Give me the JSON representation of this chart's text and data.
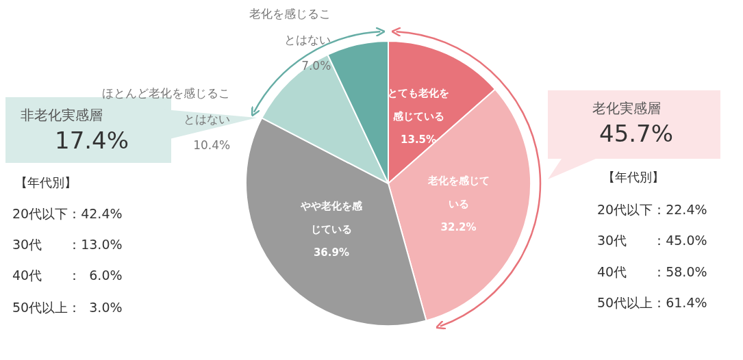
{
  "chart_data": {
    "type": "pie",
    "categories": [
      "とても老化を感じている",
      "老化を感じている",
      "やや老化を感じている",
      "ほとんど老化を感じることはない",
      "老化を感じることはない"
    ],
    "values": [
      13.5,
      32.2,
      36.9,
      10.4,
      7.0
    ],
    "value_labels": [
      "13.5%",
      "32.2%",
      "36.9%",
      "10.4%",
      "7.0%"
    ],
    "colors": [
      "#e8737a",
      "#f4b3b5",
      "#9b9b9b",
      "#b3d9d2",
      "#66ada5"
    ],
    "annotations": [
      "非老化実感層",
      "17.4%",
      "【年代別】",
      "20代以下：42.4%",
      "30代　　：13.0%",
      "40代　　：  6.0%",
      "50代以上：  3.0%",
      "老化実感層",
      "45.7%",
      "【年代別】",
      "20代以下：22.4%",
      "30代　　：45.0%",
      "40代　　：58.0%",
      "50代以上：61.4%"
    ]
  }
}
